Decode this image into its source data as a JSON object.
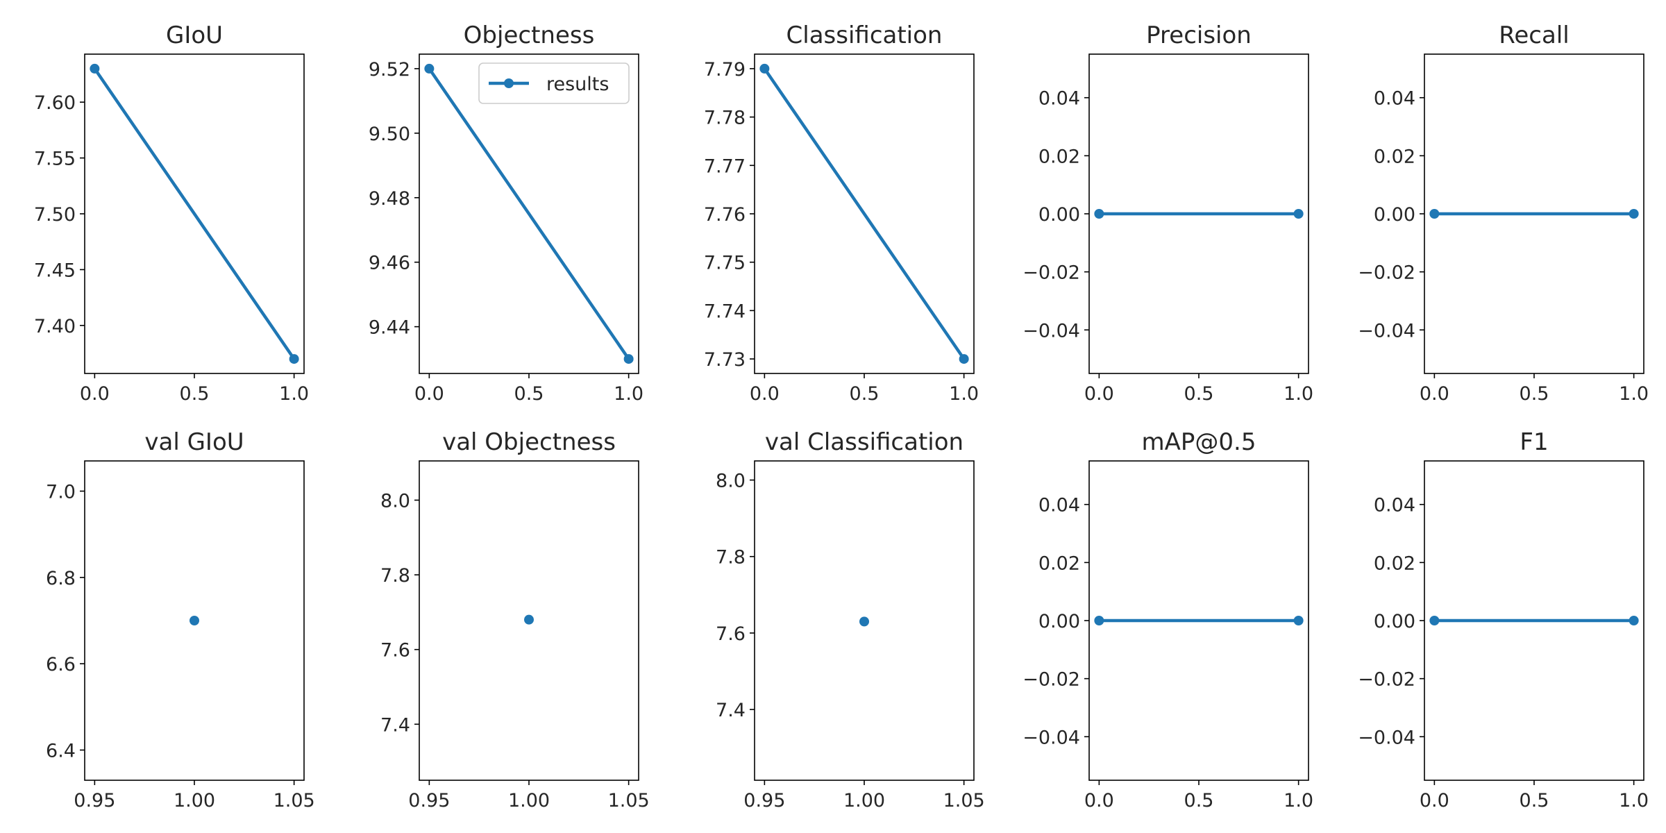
{
  "figure": {
    "accent_color": "#1f77b4"
  },
  "chart_data": [
    {
      "type": "line",
      "title": "GIoU",
      "x": [
        0,
        1
      ],
      "y": [
        7.63,
        7.37
      ],
      "xlim": [
        -0.05,
        1.05
      ],
      "ylim": [
        7.357,
        7.643
      ],
      "xticks": [
        "0.0",
        "0.5",
        "1.0"
      ],
      "xtick_values": [
        0,
        0.5,
        1
      ],
      "yticks": [
        "7.40",
        "7.45",
        "7.50",
        "7.55",
        "7.60"
      ],
      "ytick_values": [
        7.4,
        7.45,
        7.5,
        7.55,
        7.6
      ],
      "grid": false,
      "legend": null,
      "xlabel": "",
      "ylabel": ""
    },
    {
      "type": "line",
      "title": "Objectness",
      "x": [
        0,
        1
      ],
      "y": [
        9.52,
        9.43
      ],
      "xlim": [
        -0.05,
        1.05
      ],
      "ylim": [
        9.4255,
        9.5245
      ],
      "xticks": [
        "0.0",
        "0.5",
        "1.0"
      ],
      "xtick_values": [
        0,
        0.5,
        1
      ],
      "yticks": [
        "9.44",
        "9.46",
        "9.48",
        "9.50",
        "9.52"
      ],
      "ytick_values": [
        9.44,
        9.46,
        9.48,
        9.5,
        9.52
      ],
      "grid": false,
      "legend": {
        "entries": [
          "results"
        ],
        "placement": "upper right"
      },
      "xlabel": "",
      "ylabel": ""
    },
    {
      "type": "line",
      "title": "Classification",
      "x": [
        0,
        1
      ],
      "y": [
        7.79,
        7.73
      ],
      "xlim": [
        -0.05,
        1.05
      ],
      "ylim": [
        7.727,
        7.793
      ],
      "xticks": [
        "0.0",
        "0.5",
        "1.0"
      ],
      "xtick_values": [
        0,
        0.5,
        1
      ],
      "yticks": [
        "7.73",
        "7.74",
        "7.75",
        "7.76",
        "7.77",
        "7.78",
        "7.79"
      ],
      "ytick_values": [
        7.73,
        7.74,
        7.75,
        7.76,
        7.77,
        7.78,
        7.79
      ],
      "grid": false,
      "legend": null,
      "xlabel": "",
      "ylabel": ""
    },
    {
      "type": "line",
      "title": "Precision",
      "x": [
        0,
        1
      ],
      "y": [
        0,
        0
      ],
      "xlim": [
        -0.05,
        1.05
      ],
      "ylim": [
        -0.055,
        0.055
      ],
      "xticks": [
        "0.0",
        "0.5",
        "1.0"
      ],
      "xtick_values": [
        0,
        0.5,
        1
      ],
      "yticks": [
        "−0.04",
        "−0.02",
        "0.00",
        "0.02",
        "0.04"
      ],
      "ytick_values": [
        -0.04,
        -0.02,
        0,
        0.02,
        0.04
      ],
      "grid": false,
      "legend": null,
      "xlabel": "",
      "ylabel": ""
    },
    {
      "type": "line",
      "title": "Recall",
      "x": [
        0,
        1
      ],
      "y": [
        0,
        0
      ],
      "xlim": [
        -0.05,
        1.05
      ],
      "ylim": [
        -0.055,
        0.055
      ],
      "xticks": [
        "0.0",
        "0.5",
        "1.0"
      ],
      "xtick_values": [
        0,
        0.5,
        1
      ],
      "yticks": [
        "−0.04",
        "−0.02",
        "0.00",
        "0.02",
        "0.04"
      ],
      "ytick_values": [
        -0.04,
        -0.02,
        0,
        0.02,
        0.04
      ],
      "grid": false,
      "legend": null,
      "xlabel": "",
      "ylabel": ""
    },
    {
      "type": "scatter",
      "title": "val GIoU",
      "x": [
        1
      ],
      "y": [
        6.7
      ],
      "xlim": [
        0.945,
        1.055
      ],
      "ylim": [
        6.33,
        7.07
      ],
      "xticks": [
        "0.95",
        "1.00",
        "1.05"
      ],
      "xtick_values": [
        0.95,
        1.0,
        1.05
      ],
      "yticks": [
        "6.4",
        "6.6",
        "6.8",
        "7.0"
      ],
      "ytick_values": [
        6.4,
        6.6,
        6.8,
        7.0
      ],
      "grid": false,
      "legend": null,
      "xlabel": "",
      "ylabel": ""
    },
    {
      "type": "scatter",
      "title": "val Objectness",
      "x": [
        1
      ],
      "y": [
        7.68
      ],
      "xlim": [
        0.945,
        1.055
      ],
      "ylim": [
        7.25,
        8.105
      ],
      "xticks": [
        "0.95",
        "1.00",
        "1.05"
      ],
      "xtick_values": [
        0.95,
        1.0,
        1.05
      ],
      "yticks": [
        "7.4",
        "7.6",
        "7.8",
        "8.0"
      ],
      "ytick_values": [
        7.4,
        7.6,
        7.8,
        8.0
      ],
      "grid": false,
      "legend": null,
      "xlabel": "",
      "ylabel": ""
    },
    {
      "type": "scatter",
      "title": "val Classification",
      "x": [
        1
      ],
      "y": [
        7.63
      ],
      "xlim": [
        0.945,
        1.055
      ],
      "ylim": [
        7.215,
        8.05
      ],
      "xticks": [
        "0.95",
        "1.00",
        "1.05"
      ],
      "xtick_values": [
        0.95,
        1.0,
        1.05
      ],
      "yticks": [
        "7.4",
        "7.6",
        "7.8",
        "8.0"
      ],
      "ytick_values": [
        7.4,
        7.6,
        7.8,
        8.0
      ],
      "grid": false,
      "legend": null,
      "xlabel": "",
      "ylabel": ""
    },
    {
      "type": "line",
      "title": "mAP@0.5",
      "x": [
        0,
        1
      ],
      "y": [
        0,
        0
      ],
      "xlim": [
        -0.05,
        1.05
      ],
      "ylim": [
        -0.055,
        0.055
      ],
      "xticks": [
        "0.0",
        "0.5",
        "1.0"
      ],
      "xtick_values": [
        0,
        0.5,
        1
      ],
      "yticks": [
        "−0.04",
        "−0.02",
        "0.00",
        "0.02",
        "0.04"
      ],
      "ytick_values": [
        -0.04,
        -0.02,
        0,
        0.02,
        0.04
      ],
      "grid": false,
      "legend": null,
      "xlabel": "",
      "ylabel": ""
    },
    {
      "type": "line",
      "title": "F1",
      "x": [
        0,
        1
      ],
      "y": [
        0,
        0
      ],
      "xlim": [
        -0.05,
        1.05
      ],
      "ylim": [
        -0.055,
        0.055
      ],
      "xticks": [
        "0.0",
        "0.5",
        "1.0"
      ],
      "xtick_values": [
        0,
        0.5,
        1
      ],
      "yticks": [
        "−0.04",
        "−0.02",
        "0.00",
        "0.02",
        "0.04"
      ],
      "ytick_values": [
        -0.04,
        -0.02,
        0,
        0.02,
        0.04
      ],
      "grid": false,
      "legend": null,
      "xlabel": "",
      "ylabel": ""
    }
  ]
}
